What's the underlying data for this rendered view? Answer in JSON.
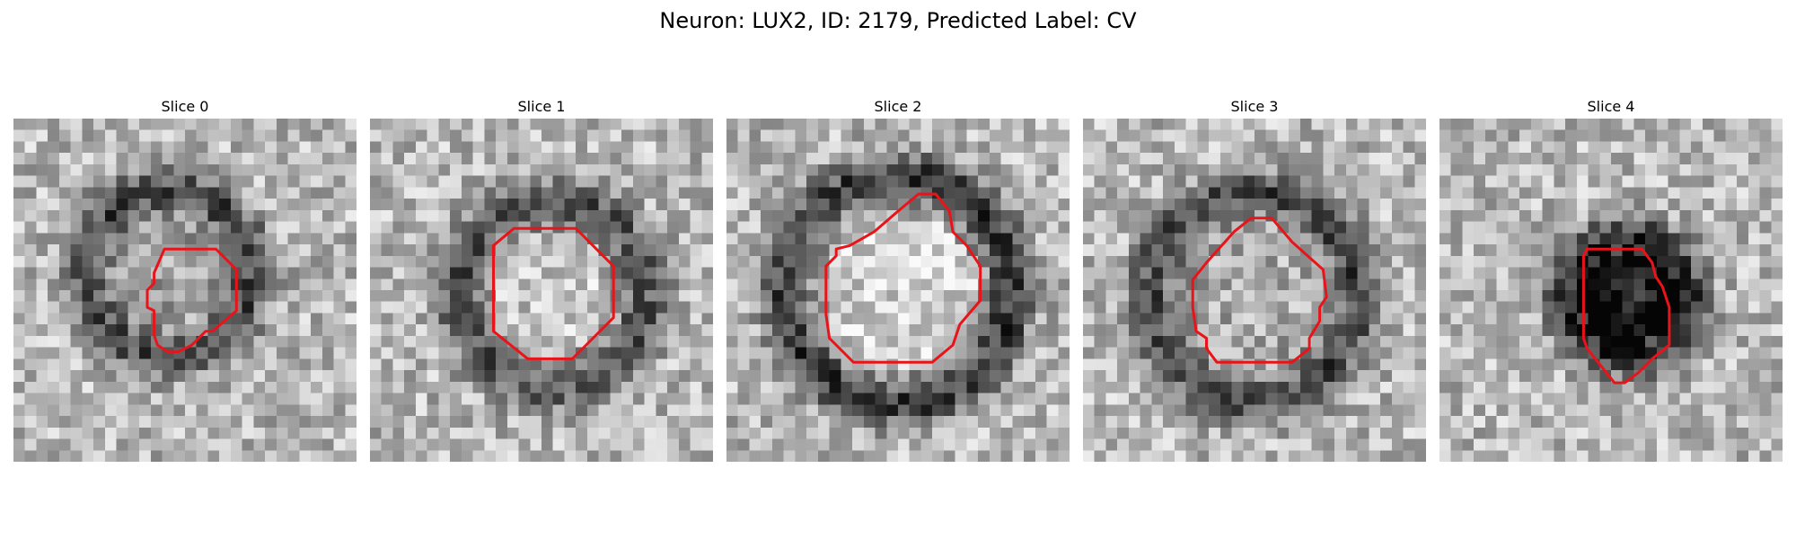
{
  "title": "Neuron: LUX2, ID: 2179, Predicted Label: CV",
  "contour_color": "#e8141a",
  "colormap": "grayscale",
  "panels": [
    {
      "title": "Slice 0",
      "center": [
        0.45,
        0.45
      ],
      "radius": 0.14,
      "ring_radius": 0.24,
      "ring_darkness": 0.45,
      "inner_darkness": 0.08,
      "seed": 11,
      "roi": [
        [
          0.44,
          0.38
        ],
        [
          0.59,
          0.38
        ],
        [
          0.65,
          0.44
        ],
        [
          0.65,
          0.56
        ],
        [
          0.58,
          0.62
        ],
        [
          0.56,
          0.62
        ],
        [
          0.52,
          0.66
        ],
        [
          0.48,
          0.68
        ],
        [
          0.45,
          0.68
        ],
        [
          0.42,
          0.66
        ],
        [
          0.41,
          0.63
        ],
        [
          0.41,
          0.56
        ],
        [
          0.39,
          0.55
        ],
        [
          0.39,
          0.5
        ],
        [
          0.41,
          0.48
        ],
        [
          0.41,
          0.45
        ]
      ]
    },
    {
      "title": "Slice 1",
      "center": [
        0.53,
        0.51
      ],
      "radius": 0.18,
      "ring_radius": 0.27,
      "ring_darkness": 0.4,
      "inner_darkness": -0.05,
      "seed": 23,
      "roi": [
        [
          0.36,
          0.37
        ],
        [
          0.42,
          0.32
        ],
        [
          0.6,
          0.32
        ],
        [
          0.66,
          0.38
        ],
        [
          0.71,
          0.43
        ],
        [
          0.71,
          0.58
        ],
        [
          0.65,
          0.64
        ],
        [
          0.59,
          0.7
        ],
        [
          0.46,
          0.7
        ],
        [
          0.41,
          0.66
        ],
        [
          0.36,
          0.62
        ]
      ]
    },
    {
      "title": "Slice 2",
      "center": [
        0.5,
        0.5
      ],
      "radius": 0.22,
      "ring_radius": 0.33,
      "ring_darkness": 0.5,
      "inner_darkness": -0.1,
      "seed": 37,
      "roi": [
        [
          0.43,
          0.33
        ],
        [
          0.5,
          0.27
        ],
        [
          0.56,
          0.22
        ],
        [
          0.61,
          0.22
        ],
        [
          0.65,
          0.27
        ],
        [
          0.66,
          0.33
        ],
        [
          0.7,
          0.37
        ],
        [
          0.74,
          0.43
        ],
        [
          0.74,
          0.53
        ],
        [
          0.68,
          0.6
        ],
        [
          0.66,
          0.66
        ],
        [
          0.6,
          0.71
        ],
        [
          0.37,
          0.71
        ],
        [
          0.3,
          0.64
        ],
        [
          0.29,
          0.57
        ],
        [
          0.29,
          0.43
        ],
        [
          0.32,
          0.4
        ],
        [
          0.32,
          0.38
        ],
        [
          0.36,
          0.37
        ]
      ]
    },
    {
      "title": "Slice 3",
      "center": [
        0.5,
        0.52
      ],
      "radius": 0.2,
      "ring_radius": 0.3,
      "ring_darkness": 0.45,
      "inner_darkness": 0.05,
      "seed": 41,
      "roi": [
        [
          0.44,
          0.33
        ],
        [
          0.49,
          0.29
        ],
        [
          0.55,
          0.29
        ],
        [
          0.61,
          0.36
        ],
        [
          0.7,
          0.44
        ],
        [
          0.71,
          0.52
        ],
        [
          0.69,
          0.55
        ],
        [
          0.69,
          0.59
        ],
        [
          0.66,
          0.64
        ],
        [
          0.66,
          0.67
        ],
        [
          0.61,
          0.71
        ],
        [
          0.39,
          0.71
        ],
        [
          0.36,
          0.67
        ],
        [
          0.36,
          0.64
        ],
        [
          0.33,
          0.62
        ],
        [
          0.32,
          0.55
        ],
        [
          0.32,
          0.47
        ],
        [
          0.36,
          0.42
        ]
      ]
    },
    {
      "title": "Slice 4",
      "center": [
        0.55,
        0.52
      ],
      "radius": 0.14,
      "ring_radius": 0.17,
      "ring_darkness": 0.55,
      "inner_darkness": 0.55,
      "seed": 53,
      "roi": [
        [
          0.43,
          0.38
        ],
        [
          0.59,
          0.38
        ],
        [
          0.62,
          0.42
        ],
        [
          0.63,
          0.46
        ],
        [
          0.65,
          0.49
        ],
        [
          0.67,
          0.55
        ],
        [
          0.67,
          0.66
        ],
        [
          0.62,
          0.7
        ],
        [
          0.58,
          0.74
        ],
        [
          0.54,
          0.77
        ],
        [
          0.51,
          0.77
        ],
        [
          0.47,
          0.72
        ],
        [
          0.43,
          0.67
        ],
        [
          0.42,
          0.64
        ],
        [
          0.42,
          0.4
        ]
      ]
    }
  ]
}
